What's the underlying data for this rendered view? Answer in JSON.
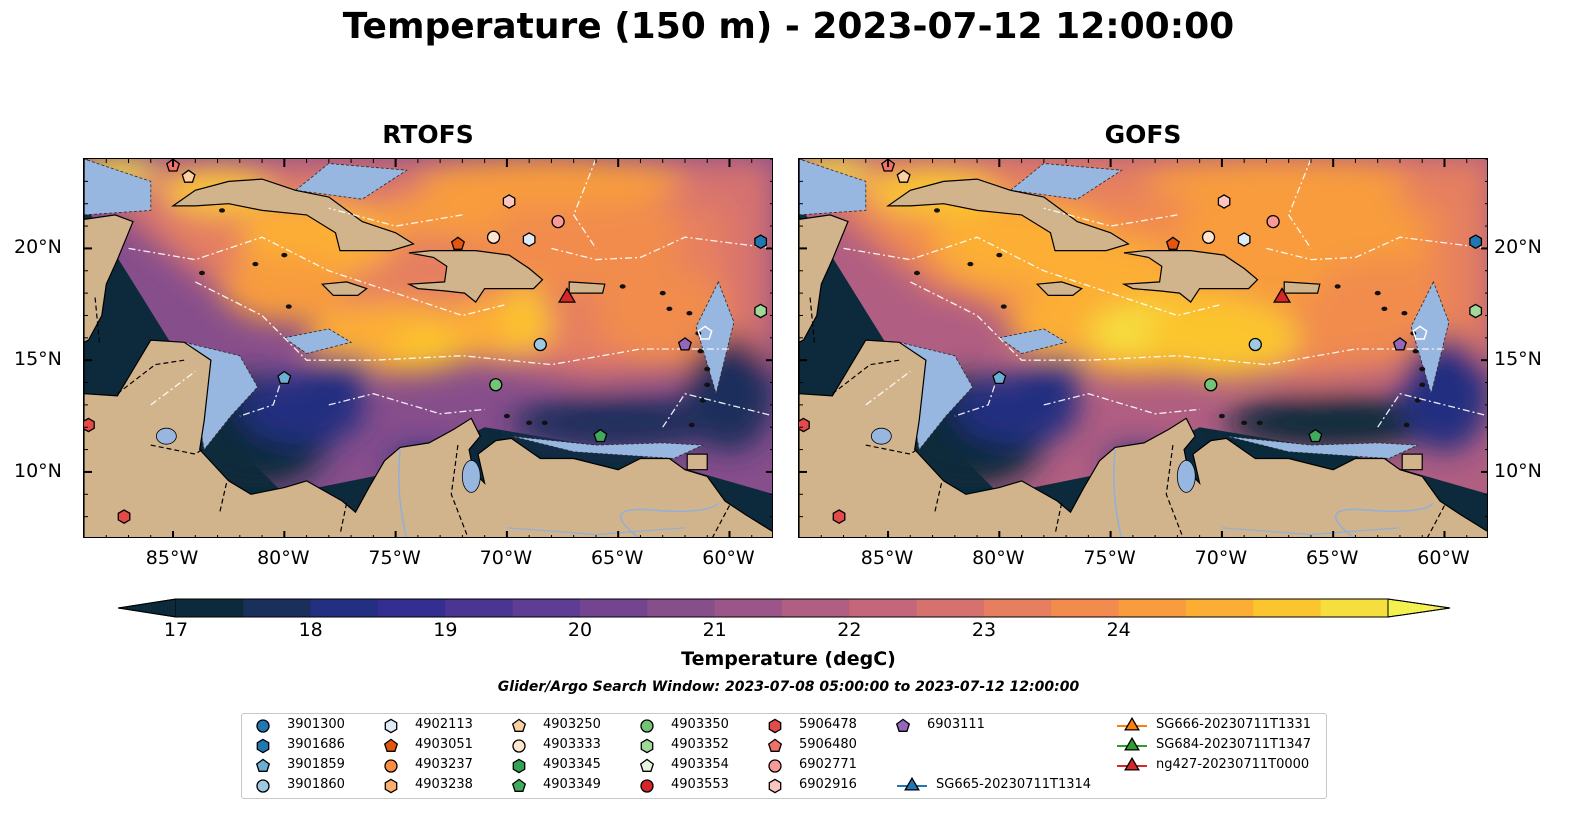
{
  "title": "Temperature (150 m) - 2023-07-12 12:00:00",
  "panels": [
    {
      "title": "RTOFS"
    },
    {
      "title": "GOFS"
    }
  ],
  "x_ticks": [
    "85°W",
    "80°W",
    "75°W",
    "70°W",
    "65°W",
    "60°W"
  ],
  "y_ticks": [
    "20°N",
    "15°N",
    "10°N"
  ],
  "colorbar": {
    "label": "Temperature (degC)",
    "ticks": [
      "17",
      "18",
      "19",
      "20",
      "21",
      "22",
      "23",
      "24"
    ],
    "colors": [
      "#0c2a3b",
      "#1b2f5c",
      "#232f80",
      "#342e92",
      "#4a3592",
      "#5e3d92",
      "#734590",
      "#874e8c",
      "#9c5588",
      "#b05e82",
      "#c4677a",
      "#d5726f",
      "#e57f60",
      "#f18c4e",
      "#f89c3e",
      "#fcae34",
      "#fbc52f",
      "#f5de3d"
    ]
  },
  "search_window": "Glider/Argo Search Window: 2023-07-08 05:00:00 to 2023-07-12 12:00:00",
  "legend": [
    {
      "label": "3901300",
      "marker": "circle",
      "color": "#1f77b4"
    },
    {
      "label": "3901686",
      "marker": "hexagon",
      "color": "#1f77b4"
    },
    {
      "label": "3901859",
      "marker": "pentagon",
      "color": "#6baed6"
    },
    {
      "label": "3901860",
      "marker": "circle",
      "color": "#9ecae1"
    },
    {
      "label": "4902113",
      "marker": "hexagon",
      "color": "#deebf7"
    },
    {
      "label": "4903051",
      "marker": "pentagon",
      "color": "#e6550d"
    },
    {
      "label": "4903237",
      "marker": "circle",
      "color": "#fd8d3c"
    },
    {
      "label": "4903238",
      "marker": "hexagon",
      "color": "#fdae6b"
    },
    {
      "label": "4903250",
      "marker": "pentagon",
      "color": "#fdd0a2"
    },
    {
      "label": "4903333",
      "marker": "circle",
      "color": "#fee6ce"
    },
    {
      "label": "4903345",
      "marker": "hexagon",
      "color": "#31a354"
    },
    {
      "label": "4903349",
      "marker": "pentagon",
      "color": "#41ab5d"
    },
    {
      "label": "4903350",
      "marker": "circle",
      "color": "#74c476"
    },
    {
      "label": "4903352",
      "marker": "hexagon",
      "color": "#a1d99b"
    },
    {
      "label": "4903354",
      "marker": "pentagon",
      "color": "#e5f5e0"
    },
    {
      "label": "4903553",
      "marker": "circle",
      "color": "#d62728"
    },
    {
      "label": "5906478",
      "marker": "hexagon",
      "color": "#e34a4a"
    },
    {
      "label": "5906480",
      "marker": "pentagon",
      "color": "#f0706a"
    },
    {
      "label": "6902771",
      "marker": "circle",
      "color": "#f89a98"
    },
    {
      "label": "6902916",
      "marker": "hexagon",
      "color": "#fcc5c0"
    },
    {
      "label": "6903111",
      "marker": "pentagon",
      "color": "#9467bd"
    },
    {
      "label": "SG665-20230711T1314",
      "marker": "triangle",
      "color": "#1f77b4"
    },
    {
      "label": "SG666-20230711T1331",
      "marker": "triangle",
      "color": "#ff7f0e"
    },
    {
      "label": "SG684-20230711T1347",
      "marker": "triangle",
      "color": "#2ca02c"
    },
    {
      "label": "ng427-20230711T0000",
      "marker": "triangle",
      "color": "#d62728"
    }
  ],
  "map_colors": {
    "land": "#d2b48c",
    "shelf": "#97b6e0",
    "deep": "#0c2a3b"
  },
  "map_extent": {
    "lon": [
      -89,
      -58
    ],
    "lat": [
      7,
      24
    ]
  }
}
